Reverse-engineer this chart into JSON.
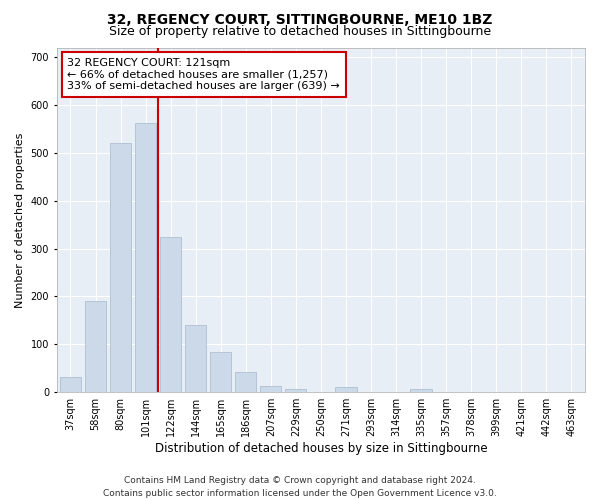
{
  "title": "32, REGENCY COURT, SITTINGBOURNE, ME10 1BZ",
  "subtitle": "Size of property relative to detached houses in Sittingbourne",
  "xlabel": "Distribution of detached houses by size in Sittingbourne",
  "ylabel": "Number of detached properties",
  "categories": [
    "37sqm",
    "58sqm",
    "80sqm",
    "101sqm",
    "122sqm",
    "144sqm",
    "165sqm",
    "186sqm",
    "207sqm",
    "229sqm",
    "250sqm",
    "271sqm",
    "293sqm",
    "314sqm",
    "335sqm",
    "357sqm",
    "378sqm",
    "399sqm",
    "421sqm",
    "442sqm",
    "463sqm"
  ],
  "values": [
    32,
    190,
    520,
    563,
    325,
    140,
    85,
    42,
    13,
    7,
    0,
    10,
    0,
    0,
    7,
    0,
    0,
    0,
    0,
    0,
    0
  ],
  "bar_color": "#ccd9e8",
  "bar_edge_color": "#adc0d4",
  "vline_color": "#cc0000",
  "vline_x_index": 4,
  "annotation_text": "32 REGENCY COURT: 121sqm\n← 66% of detached houses are smaller (1,257)\n33% of semi-detached houses are larger (639) →",
  "annotation_box_facecolor": "white",
  "annotation_box_edgecolor": "#cc0000",
  "ylim": [
    0,
    720
  ],
  "yticks": [
    0,
    100,
    200,
    300,
    400,
    500,
    600,
    700
  ],
  "background_color": "#ffffff",
  "plot_background": "#e8eef5",
  "grid_color": "#ffffff",
  "title_fontsize": 10,
  "subtitle_fontsize": 9,
  "xlabel_fontsize": 8.5,
  "ylabel_fontsize": 8,
  "tick_fontsize": 7,
  "annotation_fontsize": 8,
  "footer_fontsize": 6.5,
  "footer": "Contains HM Land Registry data © Crown copyright and database right 2024.\nContains public sector information licensed under the Open Government Licence v3.0."
}
